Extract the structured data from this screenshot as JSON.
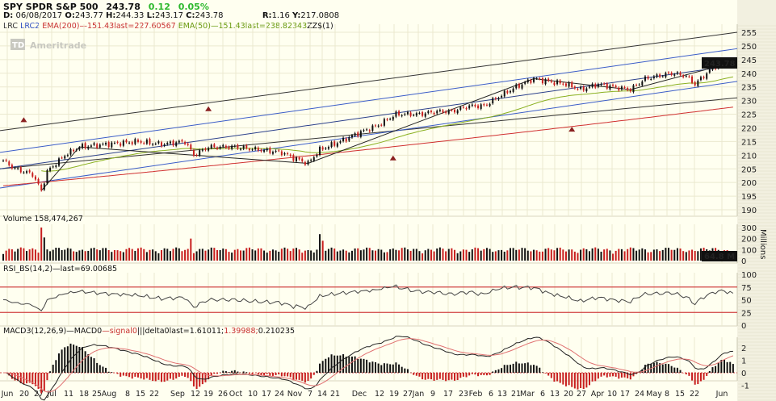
{
  "header": {
    "symbol": "SPY SPDR S&P 500",
    "last": "243.78",
    "change": "0.12",
    "change_pct": "0.05%",
    "date_label": "D:",
    "date": "06/08/2017",
    "open_label": "O:",
    "open": "243.77",
    "high_label": "H:",
    "high": "244.33",
    "low_label": "L:",
    "low": "243.17",
    "close_label": "C:",
    "close": "243.78",
    "r_label": "R:",
    "r": "1.16",
    "y_label": "Y:",
    "y": "217.0808"
  },
  "studies": {
    "lrc": "LRC",
    "lrc2": "LRC2",
    "ema200": "EMA(200)",
    "ema200_val": "151.43last=227.60567",
    "ema50": "EMA(50)",
    "ema50_val": "151.43last=238.82343",
    "zz": "ZZ$(1)"
  },
  "logo": "Ameritrade",
  "logo_badge": "TD",
  "volume": {
    "label": "Volume 158,474,267",
    "last": "64.8 M",
    "unit": "Millions",
    "ticks": [
      "300",
      "200",
      "100",
      "0"
    ]
  },
  "rsi": {
    "label": "RSI_BS(14,2)",
    "last": "last=69.00685",
    "ticks": [
      "100",
      "75",
      "50",
      "25",
      "0"
    ]
  },
  "macd": {
    "label": "MACD3(12,26,9)",
    "macd": "MACD0",
    "signal": "signal0",
    "delta": "delta0",
    "last": "last=1.61011;",
    "last2": "1.39988;",
    "last3": "0.210235",
    "ticks": [
      "2",
      "1",
      "0",
      "-1"
    ]
  },
  "colors": {
    "bg": "#fffff0",
    "up": "#111111",
    "down": "#c81e1e",
    "ema200": "#d03030",
    "ema50": "#8ab020",
    "lrc": "#333333",
    "lrc2": "#3a5cc8",
    "change": "#2db82d"
  },
  "chart_data": {
    "type": "line",
    "title": "SPY SPDR S&P 500",
    "ylim": [
      190,
      255
    ],
    "yticks": [
      "255",
      "250",
      "245",
      "240",
      "235",
      "230",
      "225",
      "220",
      "215",
      "210",
      "205",
      "200",
      "195",
      "190"
    ],
    "last_price_label": "243.78",
    "xticks": [
      "Jun",
      "20",
      "27",
      "Jul",
      "11",
      "18",
      "25",
      "Aug",
      "8",
      "15",
      "22",
      "Sep",
      "12",
      "19",
      "26",
      "Oct",
      "10",
      "17",
      "24",
      "Nov",
      "7",
      "14",
      "21",
      "Dec",
      "12",
      "19",
      "27",
      "Jan",
      "9",
      "17",
      "23",
      "Feb",
      "6",
      "13",
      "21",
      "Mar",
      "6",
      "13",
      "20",
      "27",
      "Apr",
      "10",
      "17",
      "24",
      "May",
      "8",
      "15",
      "22",
      "Jun"
    ],
    "close_keypoints_by_trading_day": [
      [
        0,
        208
      ],
      [
        4,
        205
      ],
      [
        10,
        203
      ],
      [
        13,
        197
      ],
      [
        15,
        204
      ],
      [
        21,
        210
      ],
      [
        26,
        213
      ],
      [
        35,
        214
      ],
      [
        46,
        215
      ],
      [
        54,
        214
      ],
      [
        62,
        215
      ],
      [
        65,
        210
      ],
      [
        70,
        213
      ],
      [
        79,
        213
      ],
      [
        87,
        212
      ],
      [
        95,
        211
      ],
      [
        99,
        209
      ],
      [
        104,
        207
      ],
      [
        108,
        212
      ],
      [
        115,
        215
      ],
      [
        121,
        218
      ],
      [
        128,
        221
      ],
      [
        134,
        225
      ],
      [
        142,
        225
      ],
      [
        148,
        226
      ],
      [
        153,
        226
      ],
      [
        159,
        228
      ],
      [
        164,
        228
      ],
      [
        170,
        232
      ],
      [
        175,
        235
      ],
      [
        181,
        238
      ],
      [
        186,
        237
      ],
      [
        192,
        236
      ],
      [
        197,
        234
      ],
      [
        203,
        236
      ],
      [
        208,
        235
      ],
      [
        214,
        234
      ],
      [
        219,
        238
      ],
      [
        228,
        240
      ],
      [
        233,
        239
      ],
      [
        236,
        236
      ],
      [
        241,
        241
      ],
      [
        245,
        244
      ],
      [
        249,
        243.78
      ]
    ],
    "lrc_outer": {
      "start": [
        205,
        219
      ],
      "end": [
        231,
        255
      ]
    },
    "lrc2_bands": {
      "upper": [
        211,
        249
      ],
      "mid": [
        205,
        243
      ],
      "lower": [
        198,
        237
      ]
    },
    "ema200": {
      "start": 198.8,
      "end": 227.6
    },
    "ema50": {
      "end": 238.8
    },
    "zigzag": [
      [
        13,
        197
      ],
      [
        26,
        213
      ],
      [
        104,
        207
      ],
      [
        181,
        238
      ],
      [
        214,
        234
      ],
      [
        249,
        244
      ]
    ],
    "markers": [
      [
        7,
        223
      ],
      [
        70,
        227
      ],
      [
        133,
        209
      ],
      [
        194,
        219.5
      ]
    ],
    "volume_spikes_millions": [
      [
        13,
        300
      ],
      [
        14,
        210
      ],
      [
        64,
        200
      ],
      [
        108,
        240
      ],
      [
        109,
        180
      ]
    ],
    "rsi_levels": [
      75,
      25
    ],
    "macd_last": [
      1.61011,
      1.39988,
      0.210235
    ]
  }
}
